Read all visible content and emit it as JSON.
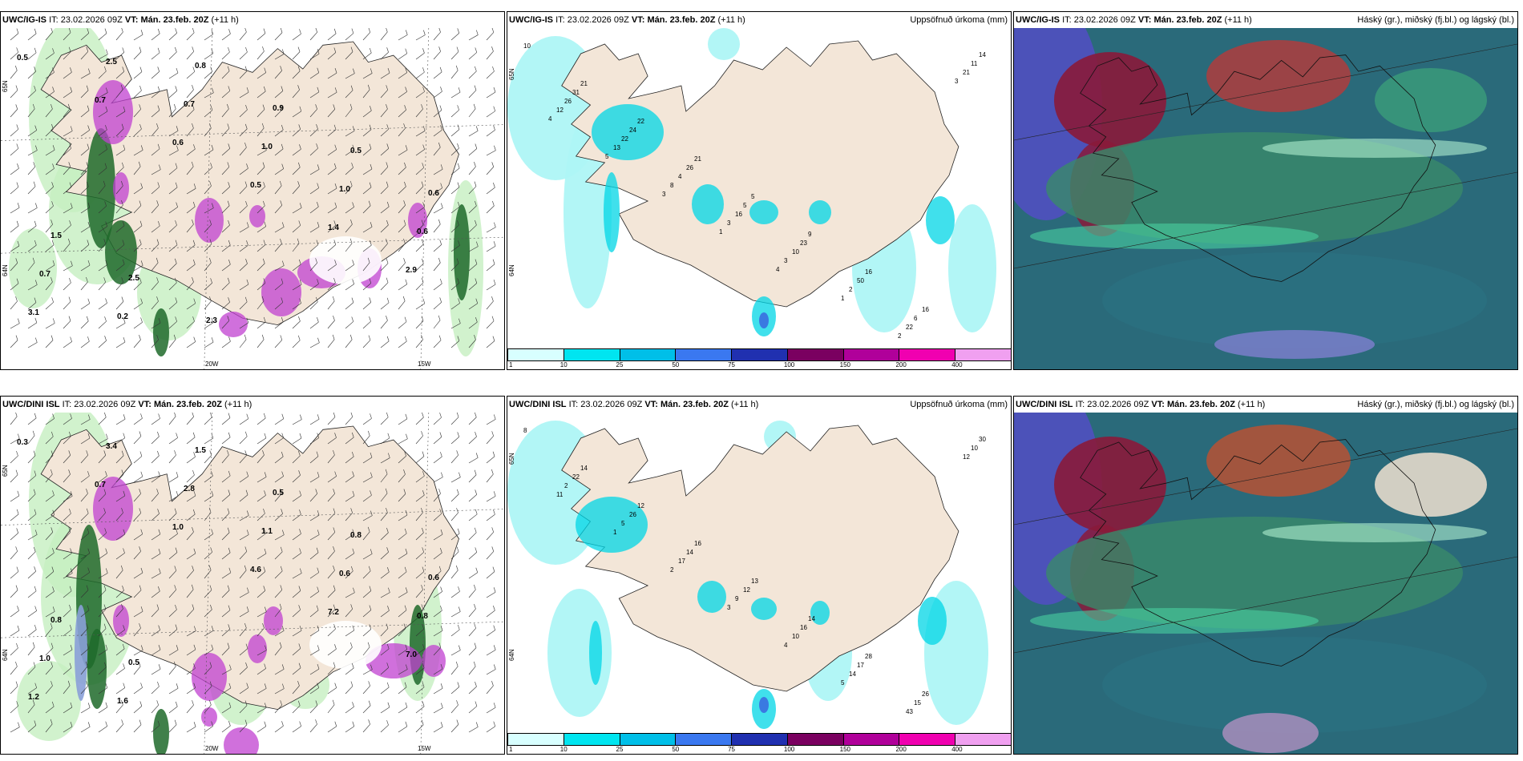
{
  "colors": {
    "land": "#f3e6d8",
    "sea": "#ffffff",
    "precip_light": "#aef5f5",
    "precip_mid": "#00d5e6",
    "precip_blue": "#3a6ee0",
    "snow_purple": "#c040d0",
    "rain_green": "#1f6a2a",
    "cloud_high": "#8a1a3a",
    "cloud_mid": "#3a8a6a",
    "cloud_low": "#5050c0"
  },
  "rows": [
    {
      "model": "UWC/IG-IS",
      "it_label": "IT:",
      "it_value": "23.02.2026 09Z",
      "vt_label": "VT:",
      "vt_value": "Mán. 23.feb. 20Z",
      "lead": "(+11 h)",
      "precip_title": "Uppsöfnuð úrkoma (mm)",
      "cloud_title": "Háský (gr.), miðský (fj.bl.) og lágský (bl.)",
      "lat_labels": [
        "65N",
        "64N"
      ],
      "lon_labels": [
        "20W",
        "15W"
      ],
      "precip_numbers": [
        "10",
        "21",
        "22",
        "21",
        "5",
        "9",
        "16",
        "16",
        "14",
        "31",
        "24",
        "26",
        "5",
        "23",
        "50",
        "6",
        "11",
        "26",
        "22",
        "4",
        "16",
        "10",
        "2",
        "22",
        "21",
        "12",
        "13",
        "8",
        "3",
        "3",
        "1",
        "2",
        "3",
        "4",
        "5",
        "3",
        "1",
        "4"
      ],
      "wind_numbers": [
        "0.5",
        "0.7",
        "0.6",
        "0.5",
        "1.4",
        "2.9",
        "3.1",
        "2.5",
        "0.7",
        "1.0",
        "1.0",
        "0.6",
        "0.7",
        "0.2",
        "0.8",
        "0.9",
        "0.5",
        "0.6",
        "1.5",
        "2.5",
        "2.3"
      ]
    },
    {
      "model": "UWC/DINI ISL",
      "it_label": "IT:",
      "it_value": "23.02.2026 09Z",
      "vt_label": "VT:",
      "vt_value": "Mán. 23.feb. 20Z",
      "lead": "(+11 h)",
      "precip_title": "Uppsöfnuð úrkoma (mm)",
      "cloud_title": "Háský (gr.), miðský (fj.bl.) og lágský (bl.)",
      "lat_labels": [
        "65N",
        "64N"
      ],
      "lon_labels": [
        "20W",
        "15W"
      ],
      "precip_numbers": [
        "8",
        "14",
        "12",
        "16",
        "13",
        "14",
        "28",
        "26",
        "30",
        "22",
        "26",
        "14",
        "12",
        "16",
        "17",
        "15",
        "10",
        "2",
        "5",
        "17",
        "9",
        "10",
        "14",
        "43",
        "12",
        "11",
        "1",
        "2",
        "3",
        "4",
        "5"
      ],
      "wind_numbers": [
        "0.3",
        "0.7",
        "1.0",
        "4.6",
        "7.2",
        "7.0",
        "1.2",
        "3.4",
        "2.8",
        "1.1",
        "0.6",
        "0.8",
        "1.0",
        "1.6",
        "1.5",
        "0.5",
        "0.8",
        "0.6",
        "0.8",
        "0.5"
      ]
    }
  ],
  "legend": {
    "labels": [
      "1",
      "10",
      "25",
      "50",
      "75",
      "100",
      "150",
      "200",
      "400"
    ],
    "colors": [
      "#d8ffff",
      "#00e5f0",
      "#00bfe8",
      "#3a78f0",
      "#2030b0",
      "#7a0060",
      "#b0009a",
      "#f000b0",
      "#f0a0f0"
    ]
  }
}
